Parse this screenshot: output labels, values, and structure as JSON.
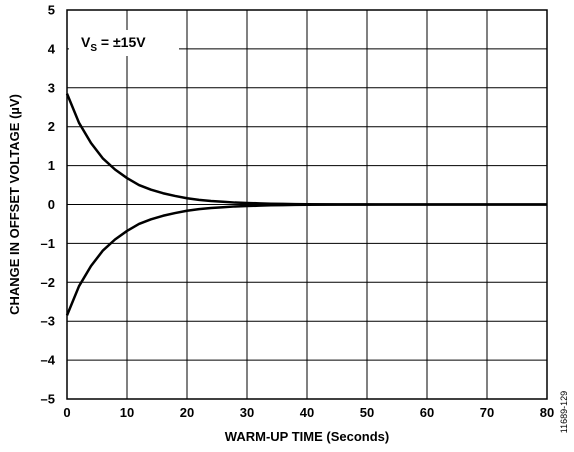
{
  "chart_data": {
    "type": "line",
    "xlabel": "WARM-UP TIME (Seconds)",
    "ylabel": "CHANGE IN OFFSET VOLTAGE (µV)",
    "xlim": [
      0,
      80
    ],
    "ylim": [
      -5,
      5
    ],
    "x_ticks": [
      "0",
      "10",
      "20",
      "30",
      "40",
      "50",
      "60",
      "70",
      "80"
    ],
    "y_ticks": [
      "5",
      "4",
      "3",
      "2",
      "1",
      "0",
      "–1",
      "–2",
      "–3",
      "–4",
      "–5"
    ],
    "grid": true,
    "annotation": {
      "prefix": "V",
      "subscript": "S",
      "suffix": " = ±15V"
    },
    "figure_id": "11689-129",
    "series": [
      {
        "x": [
          0,
          2,
          4,
          6,
          8,
          10,
          12,
          14,
          16,
          18,
          20,
          22,
          24,
          26,
          28,
          30,
          32,
          34,
          36,
          38,
          40,
          45,
          50,
          60,
          70,
          80
        ],
        "y": [
          2.85,
          2.1,
          1.58,
          1.18,
          0.9,
          0.68,
          0.5,
          0.38,
          0.29,
          0.22,
          0.16,
          0.12,
          0.09,
          0.07,
          0.05,
          0.04,
          0.03,
          0.02,
          0.015,
          0.01,
          0.008,
          0.004,
          0.002,
          0.0,
          0.0,
          0.0
        ]
      },
      {
        "x": [
          0,
          2,
          4,
          6,
          8,
          10,
          12,
          14,
          16,
          18,
          20,
          22,
          24,
          26,
          28,
          30,
          32,
          34,
          36,
          38,
          40,
          45,
          50,
          60,
          70,
          80
        ],
        "y": [
          -2.85,
          -2.1,
          -1.58,
          -1.18,
          -0.9,
          -0.68,
          -0.5,
          -0.38,
          -0.29,
          -0.22,
          -0.16,
          -0.12,
          -0.09,
          -0.07,
          -0.05,
          -0.04,
          -0.03,
          -0.02,
          -0.015,
          -0.01,
          -0.008,
          -0.004,
          -0.002,
          0.0,
          0.0,
          0.0
        ]
      }
    ]
  }
}
